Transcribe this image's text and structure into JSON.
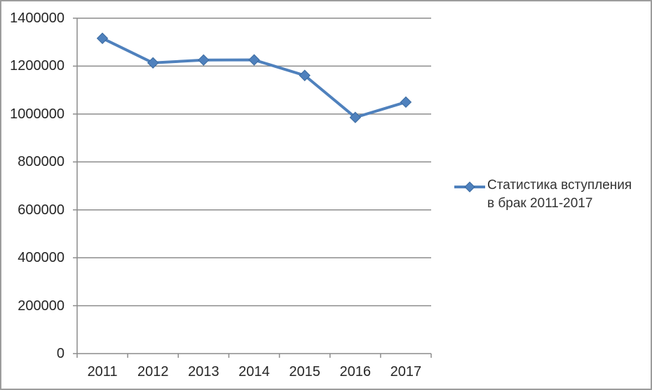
{
  "chart_data": {
    "type": "line",
    "title": "",
    "xlabel": "",
    "ylabel": "",
    "categories": [
      "2011",
      "2012",
      "2013",
      "2014",
      "2015",
      "2016",
      "2017"
    ],
    "series": [
      {
        "name": "Статистика вступления в брак 2011-2017",
        "values": [
          1316011,
          1213598,
          1225501,
          1225985,
          1161068,
          985836,
          1049735
        ]
      }
    ],
    "ylim": [
      0,
      1400000
    ],
    "y_tick_step": 200000,
    "y_tick_labels": [
      "0",
      "200000",
      "400000",
      "600000",
      "800000",
      "1000000",
      "1200000",
      "1400000"
    ],
    "grid": "horizontal",
    "legend_position": "right",
    "marker": "diamond",
    "colors": {
      "series": "#4f81bd",
      "marker_edge": "#3a6aa0",
      "grid": "#8c8c8c",
      "axis": "#8c8c8c",
      "text": "#262626",
      "background": "#ffffff",
      "border": "#9c9c9c"
    }
  }
}
